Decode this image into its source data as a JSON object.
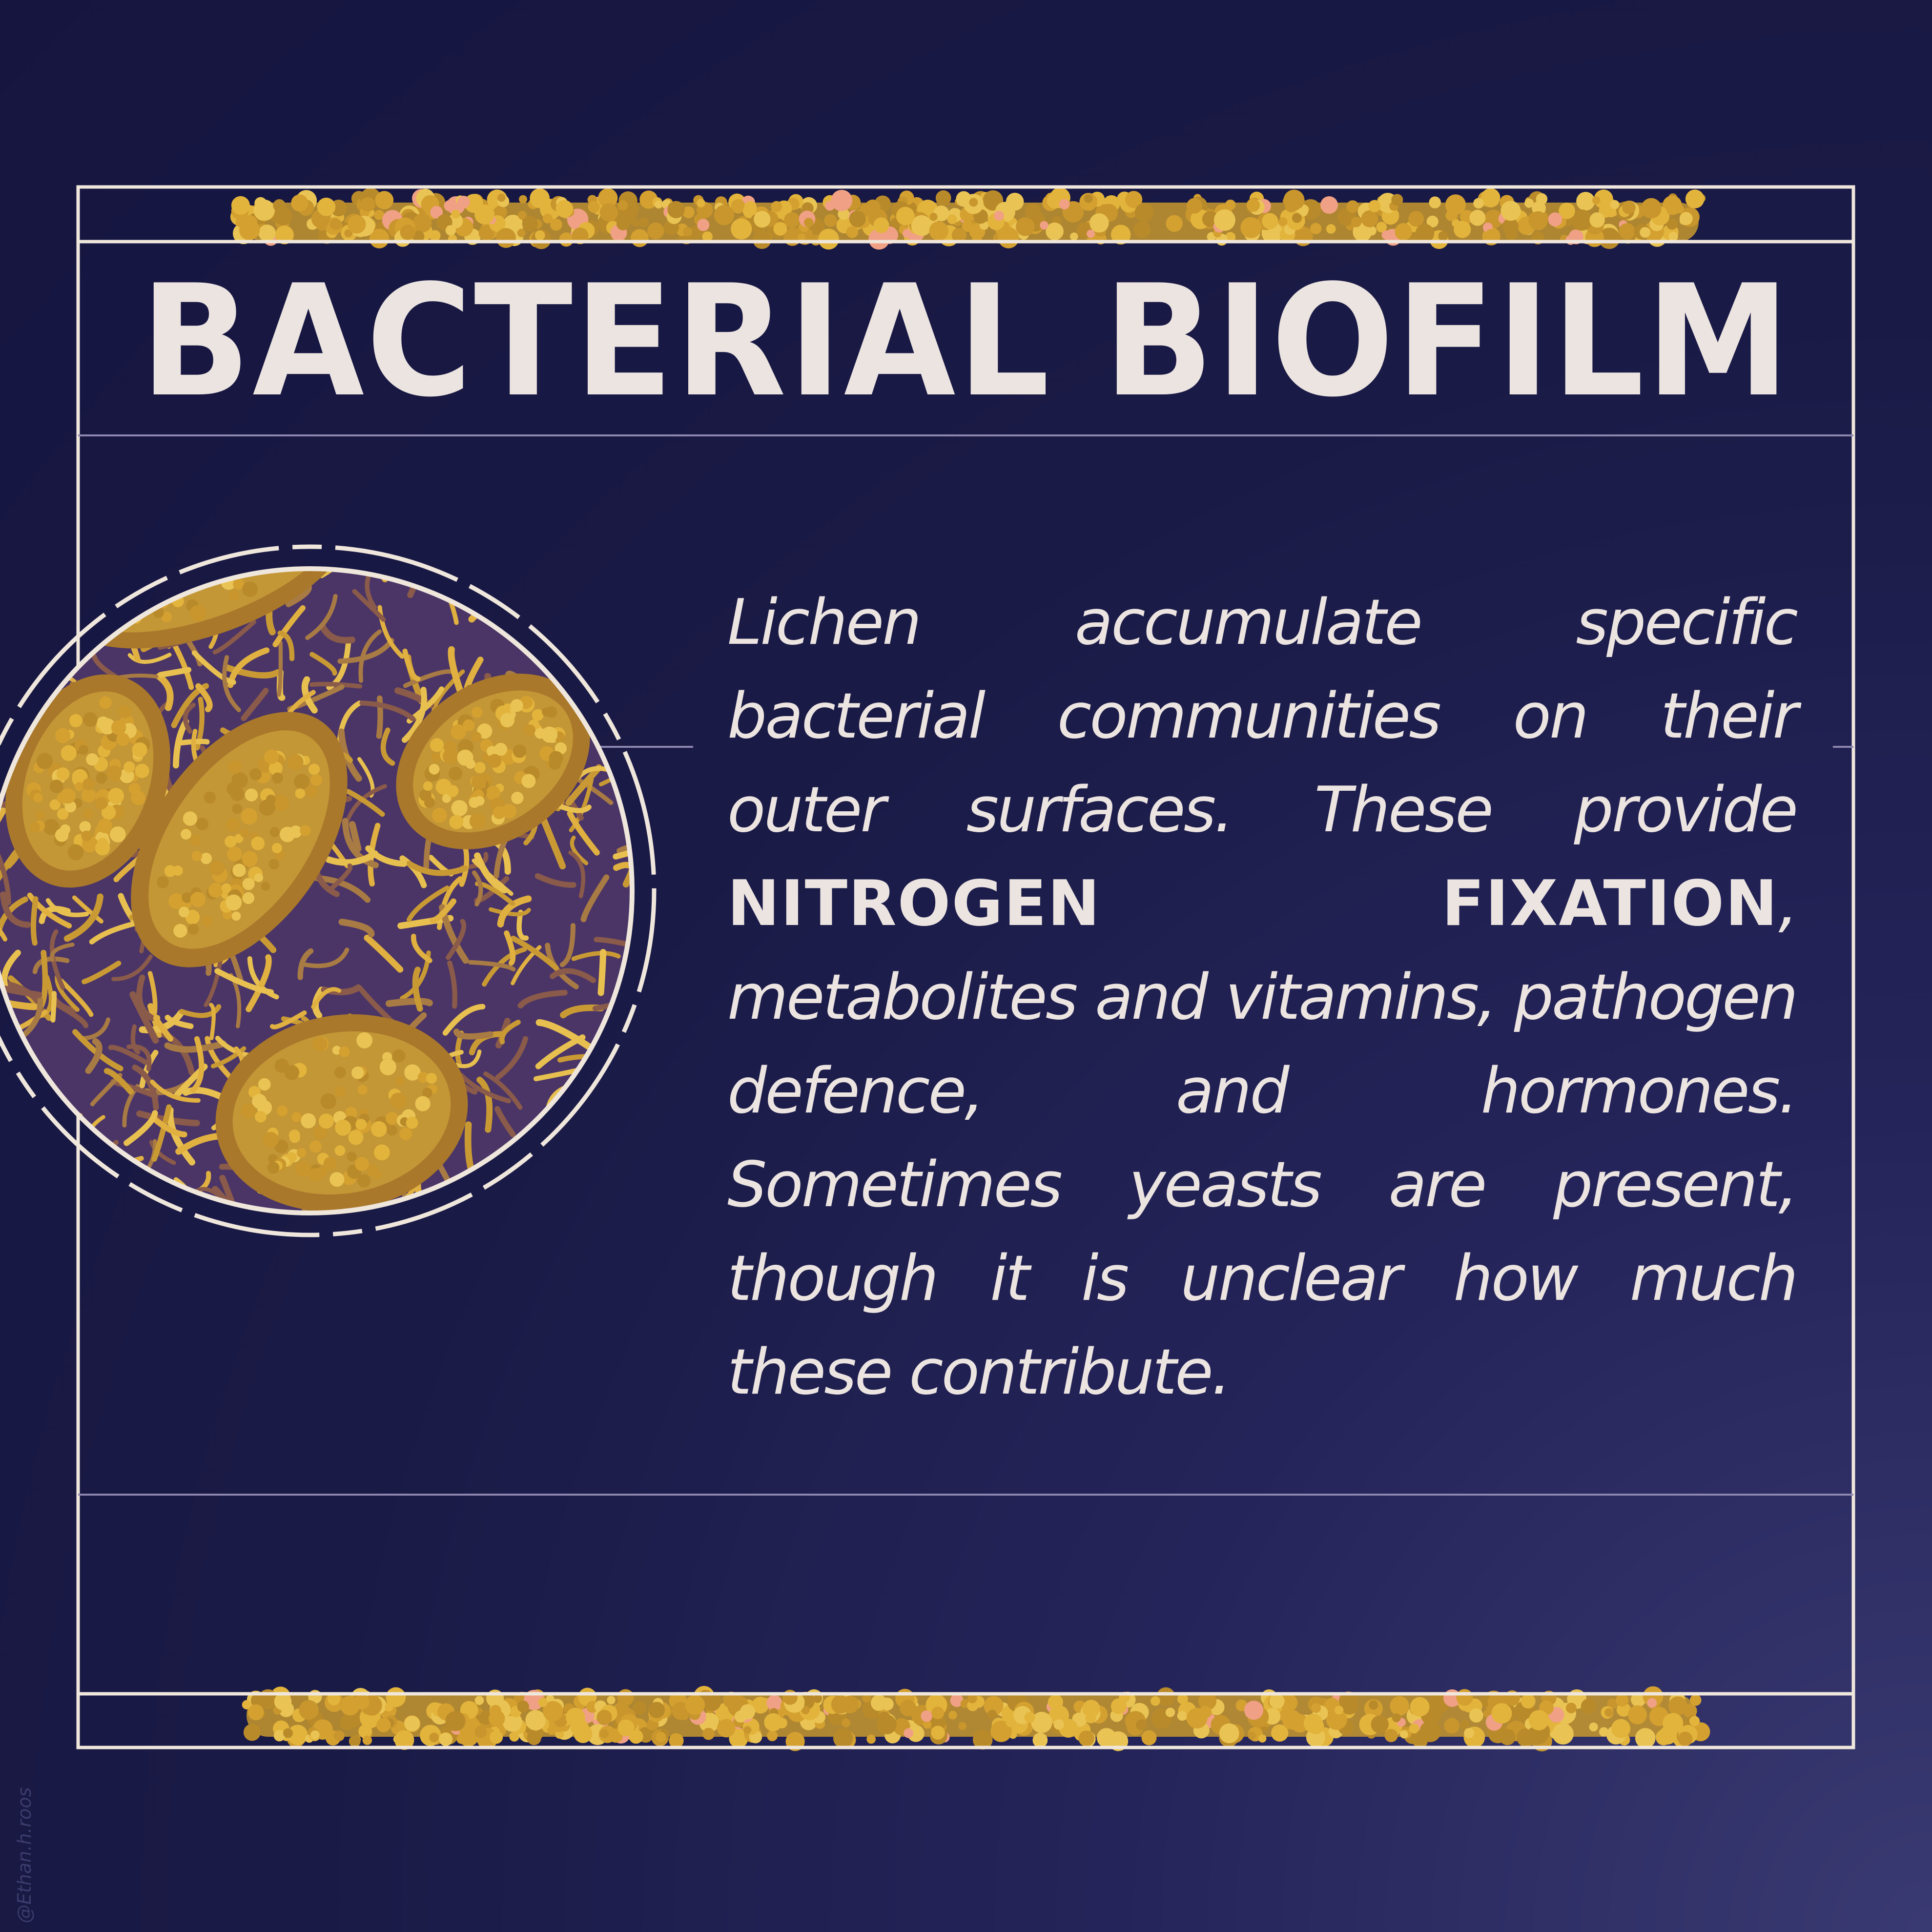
{
  "title": "BACTERIAL BIOFILM",
  "body": {
    "text_before": "Lichen accumulate specific bacterial communities on their outer surfaces. These provide ",
    "highlight": "NITROGEN FIXATION",
    "text_after": ", metabolites and vitamins, pathogen defence, and hormones. Sometimes yeasts are present, though it is unclear how much these contribute."
  },
  "credit": "@Ethan.h.roos",
  "colors": {
    "background": "#1a1a46",
    "frame": "#efe6dc",
    "text": "#ece4e0",
    "gold": "#d7a631",
    "pink": "#f0a084"
  }
}
